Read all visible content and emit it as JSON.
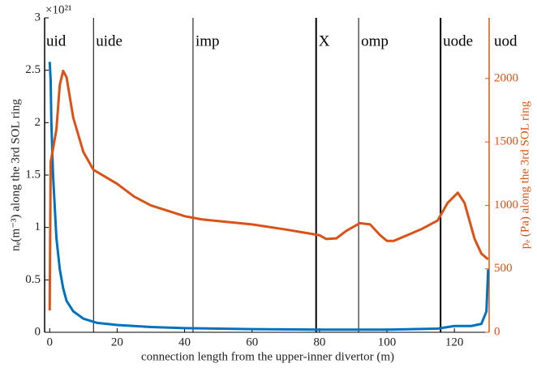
{
  "chart_data": {
    "type": "line",
    "x_label": "connection length from the upper-inner divertor (m)",
    "y_label": "nₑ(m⁻³) along the 3rd SOL ring",
    "y2_label": "pₑ (Pa) along the 3rd SOL ring",
    "y_multiplier": "×10²¹",
    "xlim": [
      -1.5,
      130.3
    ],
    "xticks": [
      0,
      20,
      40,
      60,
      80,
      100,
      120
    ],
    "ylim": [
      0,
      3
    ],
    "yticks": [
      0,
      0.5,
      1,
      1.5,
      2,
      2.5,
      3
    ],
    "y2lim": [
      0,
      2478
    ],
    "y2ticks": [
      0,
      500,
      1000,
      1500,
      2000
    ],
    "regions": [
      "uid",
      "uide",
      "imp",
      "X",
      "omp",
      "uode",
      "uod"
    ],
    "boundaries": [
      13,
      42.5,
      79,
      91.6,
      115.9
    ],
    "series": [
      {
        "name": "ne",
        "color": "#0072bd",
        "axis": "y",
        "x": [
          0,
          0.3,
          0.5,
          1,
          2,
          3,
          4,
          5,
          7,
          10,
          14,
          20,
          30,
          40,
          60,
          80,
          100,
          115,
          120,
          125,
          128,
          129.5,
          130
        ],
        "values": [
          2.58,
          2.4,
          2.0,
          1.5,
          0.9,
          0.6,
          0.42,
          0.3,
          0.2,
          0.13,
          0.09,
          0.07,
          0.05,
          0.04,
          0.03,
          0.025,
          0.025,
          0.035,
          0.06,
          0.06,
          0.08,
          0.2,
          0.6
        ]
      },
      {
        "name": "pe",
        "color": "#d95319",
        "axis": "y2",
        "x": [
          0,
          0.3,
          2,
          3,
          4,
          5,
          7,
          10,
          13,
          20,
          25,
          30,
          40,
          45,
          60,
          70,
          80,
          82,
          85,
          88,
          92,
          95,
          98,
          100,
          102,
          110,
          115,
          118,
          121,
          123,
          126,
          128,
          130
        ],
        "values": [
          172,
          1340,
          1600,
          1950,
          2060,
          2010,
          1690,
          1420,
          1280,
          1170,
          1070,
          1000,
          915,
          890,
          850,
          810,
          765,
          735,
          740,
          800,
          860,
          850,
          765,
          720,
          720,
          810,
          880,
          1020,
          1100,
          1020,
          735,
          620,
          575
        ]
      }
    ]
  }
}
